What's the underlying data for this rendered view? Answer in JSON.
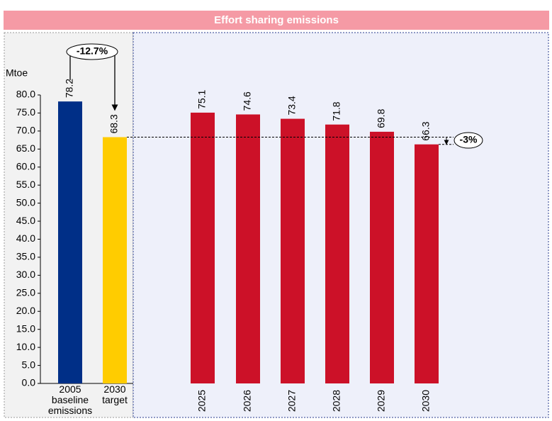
{
  "chart_data": {
    "type": "bar",
    "title": "Effort sharing emissions",
    "y_label": "Mtoe",
    "categories": [
      "2005 baseline emissions",
      "2030 target",
      "2025",
      "2026",
      "2027",
      "2028",
      "2029",
      "2030"
    ],
    "values": [
      78.2,
      68.3,
      75.1,
      74.6,
      73.4,
      71.8,
      69.8,
      66.3
    ],
    "colors": [
      "#002f87",
      "#ffcc00",
      "#cc1128",
      "#cc1128",
      "#cc1128",
      "#cc1128",
      "#cc1128",
      "#cc1128"
    ],
    "ylim": [
      0,
      80
    ],
    "yticks": [
      {
        "value": 0,
        "label": "0.0"
      },
      {
        "value": 5,
        "label": "5.0"
      },
      {
        "value": 10,
        "label": "10.0"
      },
      {
        "value": 15,
        "label": "15.0"
      },
      {
        "value": 20,
        "label": "20.0"
      },
      {
        "value": 25,
        "label": "25.0"
      },
      {
        "value": 30,
        "label": "30.0"
      },
      {
        "value": 35,
        "label": "35.0"
      },
      {
        "value": 40,
        "label": "40.0"
      },
      {
        "value": 45,
        "label": "45.0"
      },
      {
        "value": 50,
        "label": "50.0"
      },
      {
        "value": 55,
        "label": "55.0"
      },
      {
        "value": 60,
        "label": "60.0"
      },
      {
        "value": 65,
        "label": "65.0"
      },
      {
        "value": 70,
        "label": "70.0"
      },
      {
        "value": 75,
        "label": "75.0"
      },
      {
        "value": 80,
        "label": "80.0"
      }
    ],
    "annotations": [
      "-12.7%",
      "-3%"
    ]
  }
}
